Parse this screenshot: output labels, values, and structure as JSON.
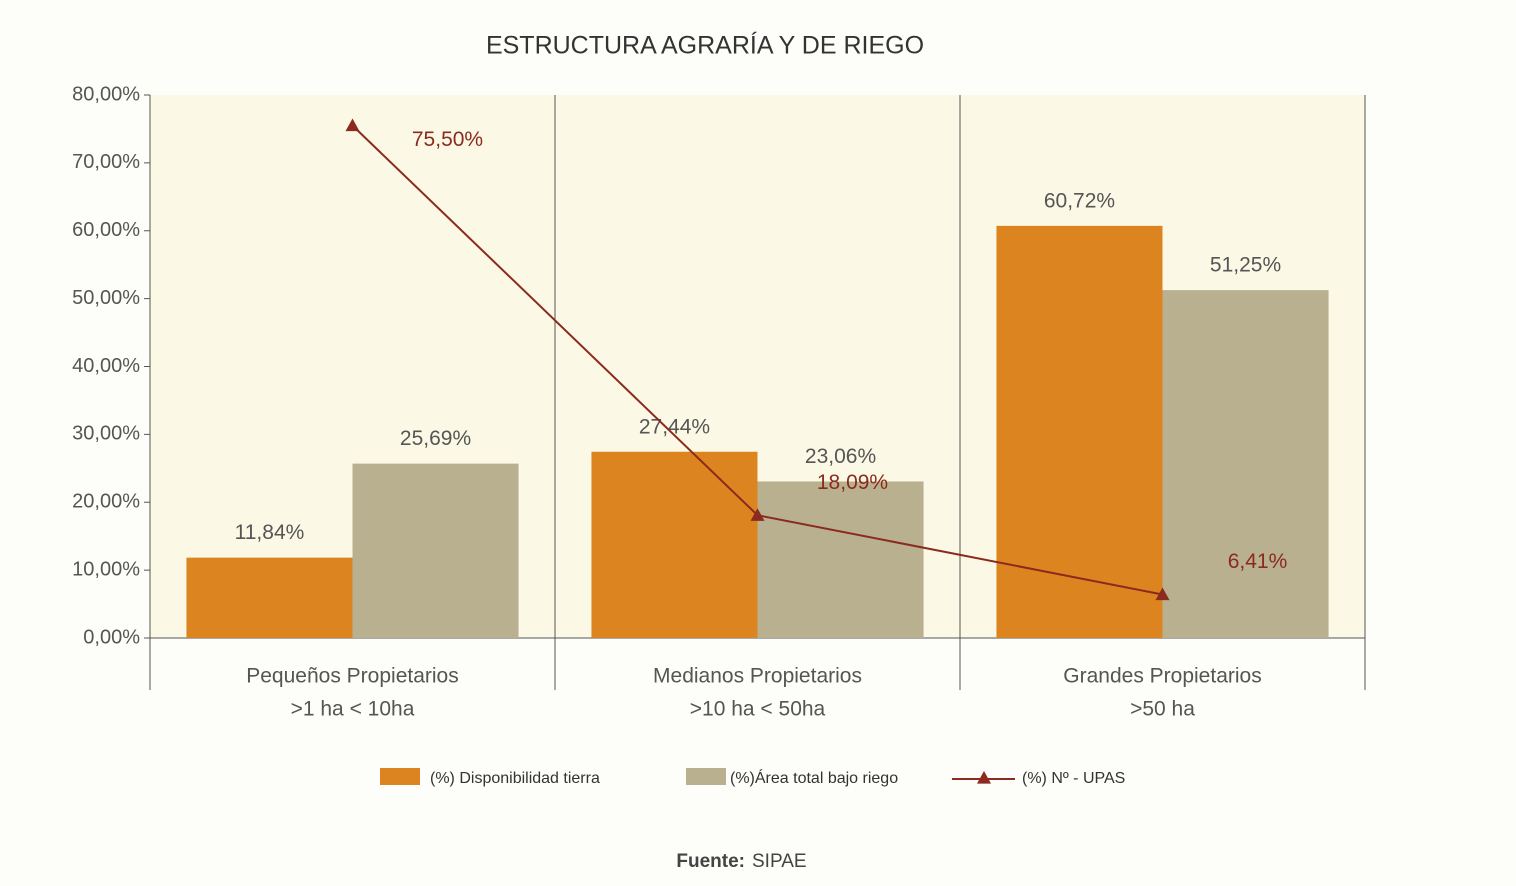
{
  "chart_data": {
    "type": "bar",
    "title": "ESTRUCTURA AGRARÍA Y DE RIEGO",
    "categories": [
      [
        "Pequeños Propietarios",
        ">1 ha < 10ha"
      ],
      [
        "Medianos Propietarios",
        ">10 ha < 50ha"
      ],
      [
        "Grandes Propietarios",
        ">50 ha"
      ]
    ],
    "series": [
      {
        "name": "(%) Disponibilidad tierra",
        "color": "#dc8520",
        "type": "bar",
        "values": [
          11.84,
          27.44,
          60.72
        ],
        "value_labels": [
          "11,84%",
          "27,44%",
          "60,72%"
        ]
      },
      {
        "name": "(%)Área total bajo riego",
        "color": "#b8b08e",
        "type": "bar",
        "values": [
          25.69,
          23.06,
          51.25
        ],
        "value_labels": [
          "25,69%",
          "23,06%",
          "51,25%"
        ]
      },
      {
        "name": "(%) Nº - UPAS",
        "color": "#8b2a1e",
        "type": "line",
        "values": [
          75.5,
          18.09,
          6.41
        ],
        "value_labels": [
          "75,50%",
          "18,09%",
          "6,41%"
        ]
      }
    ],
    "ylim": [
      0,
      80
    ],
    "yticks": [
      {
        "value": 0,
        "label": "0,00%"
      },
      {
        "value": 10,
        "label": "10,00%"
      },
      {
        "value": 20,
        "label": "20,00%"
      },
      {
        "value": 30,
        "label": "30,00%"
      },
      {
        "value": 40,
        "label": "40,00%"
      },
      {
        "value": 50,
        "label": "50,00%"
      },
      {
        "value": 60,
        "label": "60,00%"
      },
      {
        "value": 70,
        "label": "70,00%"
      },
      {
        "value": 80,
        "label": "80,00%"
      }
    ],
    "legend": "bottom",
    "source": {
      "label": "Fuente:",
      "text": "SIPAE"
    }
  }
}
